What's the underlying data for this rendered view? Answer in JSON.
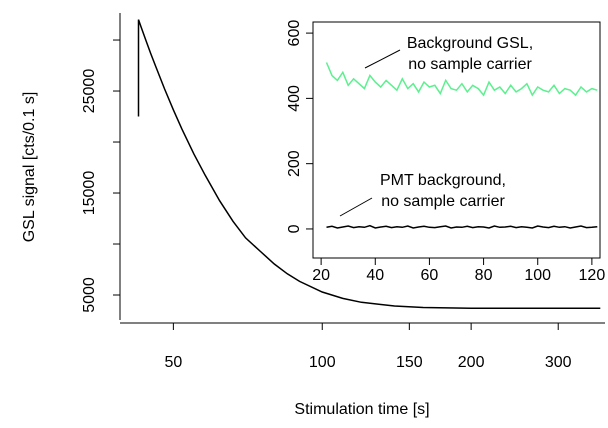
{
  "chart_data": [
    {
      "type": "line",
      "xlabel": "Stimulation time [s]",
      "ylabel": "GSL signal [cts/0.1 s]",
      "xlog": true,
      "xlim": [
        39,
        373
      ],
      "xticks": [
        50,
        100,
        150,
        200,
        300
      ],
      "ylim": [
        2550,
        32650
      ],
      "yticks": [
        5000,
        15000,
        25000
      ],
      "yticks_unlabeled": [
        10000,
        20000,
        30000
      ],
      "series": [
        {
          "color": "#000000",
          "x": [
            42.5,
            42.5,
            43,
            44,
            45,
            46,
            48,
            50,
            52,
            55,
            58,
            62,
            66,
            70,
            75,
            80,
            85,
            90,
            100,
            110,
            120,
            140,
            160,
            200,
            250,
            300,
            365
          ],
          "values": [
            22500,
            32000,
            31300,
            29960,
            28680,
            27460,
            25200,
            23150,
            21300,
            18850,
            16740,
            14250,
            12230,
            10600,
            9270,
            8040,
            7080,
            6330,
            5300,
            4670,
            4290,
            3920,
            3780,
            3710,
            3700,
            3700,
            3700
          ]
        }
      ]
    },
    {
      "type": "line",
      "xlim": [
        17,
        123
      ],
      "xticks": [
        20,
        40,
        60,
        80,
        100,
        120
      ],
      "ylim": [
        -89,
        634
      ],
      "yticks": [
        0,
        200,
        400,
        600
      ],
      "annotations": [
        {
          "lines": [
            "Background GSL,",
            "no sample carrier"
          ]
        },
        {
          "lines": [
            "PMT background,",
            "no sample carrier"
          ]
        }
      ],
      "series": [
        {
          "color": "#5cf08f",
          "x": [
            22,
            24,
            26,
            28,
            30,
            32,
            34,
            36,
            38,
            40,
            42,
            44,
            46,
            48,
            50,
            52,
            54,
            56,
            58,
            60,
            62,
            64,
            66,
            68,
            70,
            72,
            74,
            76,
            78,
            80,
            82,
            84,
            86,
            88,
            90,
            92,
            94,
            96,
            98,
            100,
            102,
            104,
            106,
            108,
            110,
            112,
            114,
            116,
            118,
            120,
            122
          ],
          "values": [
            510,
            470,
            455,
            480,
            440,
            460,
            445,
            430,
            470,
            450,
            435,
            455,
            440,
            425,
            460,
            430,
            445,
            420,
            450,
            435,
            440,
            415,
            455,
            430,
            425,
            445,
            420,
            440,
            430,
            410,
            450,
            425,
            435,
            415,
            440,
            420,
            430,
            445,
            410,
            435,
            425,
            420,
            440,
            415,
            430,
            425,
            410,
            435,
            420,
            430,
            425
          ]
        },
        {
          "color": "#000000",
          "x": [
            22,
            24,
            26,
            28,
            30,
            32,
            34,
            36,
            38,
            40,
            42,
            44,
            46,
            48,
            50,
            52,
            54,
            56,
            58,
            60,
            62,
            64,
            66,
            68,
            70,
            72,
            74,
            76,
            78,
            80,
            82,
            84,
            86,
            88,
            90,
            92,
            94,
            96,
            98,
            100,
            102,
            104,
            106,
            108,
            110,
            112,
            114,
            116,
            118,
            120,
            122
          ],
          "values": [
            5,
            8,
            3,
            6,
            9,
            4,
            7,
            5,
            10,
            3,
            6,
            8,
            4,
            7,
            5,
            9,
            3,
            6,
            8,
            5,
            4,
            7,
            9,
            3,
            6,
            5,
            8,
            4,
            7,
            6,
            3,
            9,
            5,
            6,
            8,
            4,
            7,
            5,
            3,
            9,
            6,
            4,
            8,
            5,
            7,
            3,
            6,
            9,
            4,
            5,
            7
          ]
        }
      ]
    }
  ]
}
